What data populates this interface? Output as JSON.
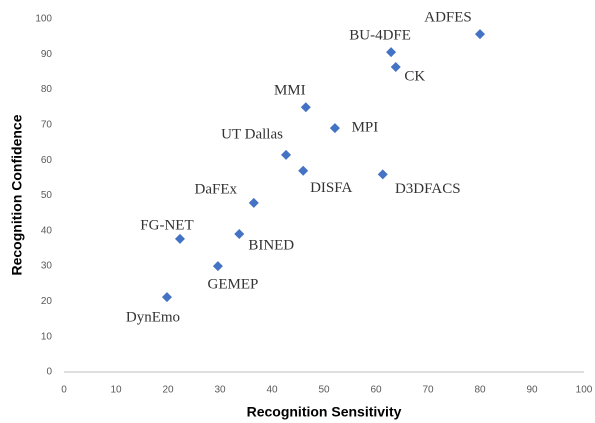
{
  "chart_data": {
    "type": "scatter",
    "x_label": "Recognition Sensitivity",
    "y_label": "Recognition Confidence",
    "point_labels": [
      "ADFES",
      "BU-4DFE",
      "CK",
      "MMI",
      "MPI",
      "UT Dallas",
      "DISFA",
      "D3DFACS",
      "DaFEx",
      "FG-NET",
      "BINED",
      "GEMEP",
      "DynEmo"
    ],
    "x": [
      80,
      62.9,
      63.8,
      46.5,
      52.1,
      42.7,
      46,
      61.3,
      36.5,
      22.3,
      33.7,
      29.6,
      19.8
    ],
    "values": [
      95.7,
      90.6,
      86.4,
      75,
      69.1,
      61.5,
      57,
      56,
      47.9,
      37.7,
      39.1,
      30,
      21.2
    ],
    "color": "#4472c4",
    "xlim": [
      0,
      100
    ],
    "xticks": [
      0,
      10,
      20,
      30,
      40,
      50,
      60,
      70,
      80,
      90,
      100
    ],
    "ylim": [
      0,
      100
    ],
    "yticks": [
      0,
      10,
      20,
      30,
      40,
      50,
      60,
      70,
      80,
      90,
      100
    ],
    "grid": false
  }
}
